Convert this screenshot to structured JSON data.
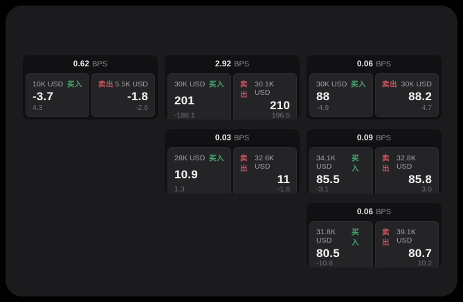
{
  "labels": {
    "bps_unit": "BPS",
    "buy": "买入",
    "sell": "卖出"
  },
  "colors": {
    "buy_green": "#46a56e",
    "sell_red": "#c4545f",
    "container_bg": "#1b1b1d",
    "card_bg": "#111113",
    "panel_bg": "#242427"
  },
  "cards": [
    {
      "bps": "0.62",
      "buy": {
        "amount": "10K USD",
        "price": "-3.7",
        "delta": "4.3"
      },
      "sell": {
        "amount": "5.5K USD",
        "price": "-1.8",
        "delta": "-2.6"
      }
    },
    {
      "bps": "2.92",
      "buy": {
        "amount": "30K USD",
        "price": "201",
        "delta": "-188.1"
      },
      "sell": {
        "amount": "30.1K USD",
        "price": "210",
        "delta": "196.5"
      }
    },
    {
      "bps": "0.06",
      "buy": {
        "amount": "30K USD",
        "price": "88",
        "delta": "-4.9"
      },
      "sell": {
        "amount": "30K USD",
        "price": "88.2",
        "delta": "4.7"
      }
    },
    {
      "bps": "0.03",
      "buy": {
        "amount": "28K USD",
        "price": "10.9",
        "delta": "1.3"
      },
      "sell": {
        "amount": "32.6K USD",
        "price": "11",
        "delta": "-1.8"
      }
    },
    {
      "bps": "0.09",
      "buy": {
        "amount": "34.1K USD",
        "price": "85.5",
        "delta": "-3.1"
      },
      "sell": {
        "amount": "32.8K USD",
        "price": "85.8",
        "delta": "3.0"
      }
    },
    {
      "bps": "0.06",
      "buy": {
        "amount": "31.8K USD",
        "price": "80.5",
        "delta": "-10.8"
      },
      "sell": {
        "amount": "39.1K USD",
        "price": "80.7",
        "delta": "10.2"
      }
    }
  ]
}
